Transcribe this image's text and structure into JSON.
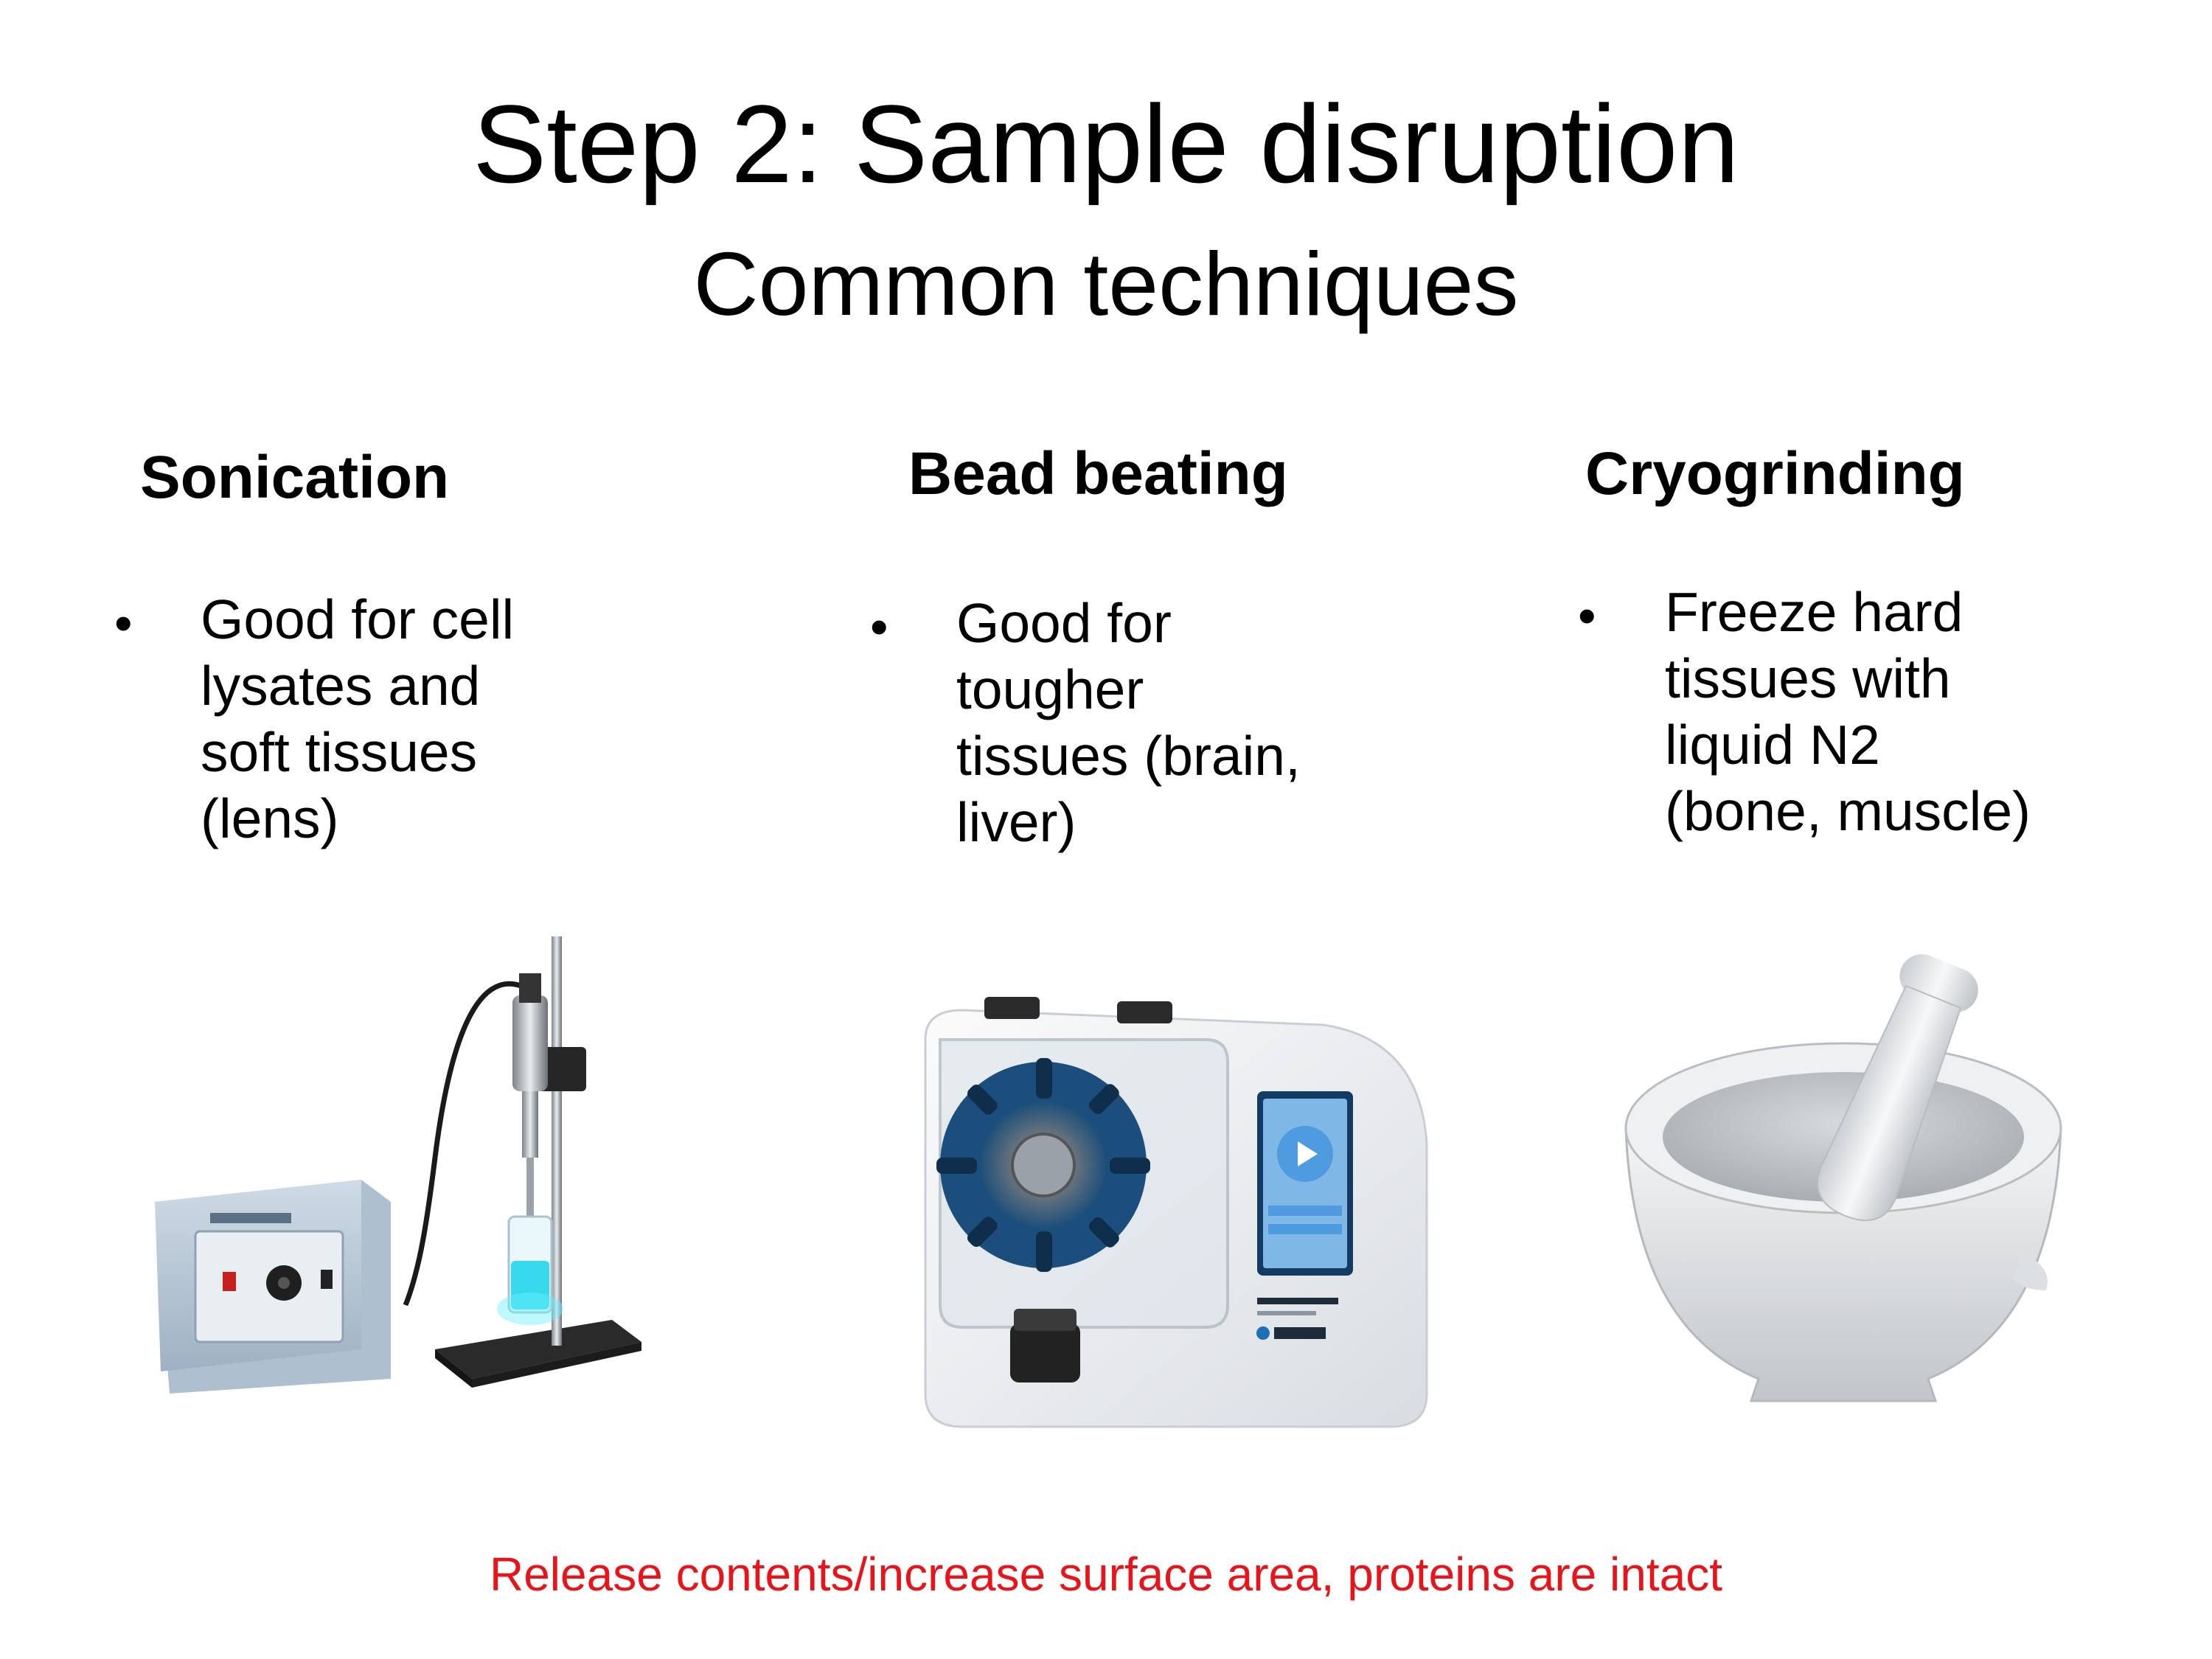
{
  "slide": {
    "title": "Step 2: Sample disruption",
    "subtitle": "Common techniques",
    "footer": "Release contents/increase surface area, proteins are intact",
    "footer_color": "#e8141a"
  },
  "columns": [
    {
      "heading": "Sonication",
      "bullet_lines": [
        "Good for cell",
        "lysates and",
        "soft tissues",
        "(lens)"
      ],
      "image_icon": "sonicator-icon"
    },
    {
      "heading": "Bead beating",
      "bullet_lines": [
        "Good for",
        "tougher",
        "tissues (brain,",
        "liver)"
      ],
      "image_icon": "bead-beater-icon"
    },
    {
      "heading": "Cryogrinding",
      "bullet_lines": [
        "Freeze hard",
        "tissues with",
        "liquid N2",
        "(bone, muscle)"
      ],
      "image_icon": "mortar-pestle-icon"
    }
  ],
  "bullet_glyph": "•"
}
